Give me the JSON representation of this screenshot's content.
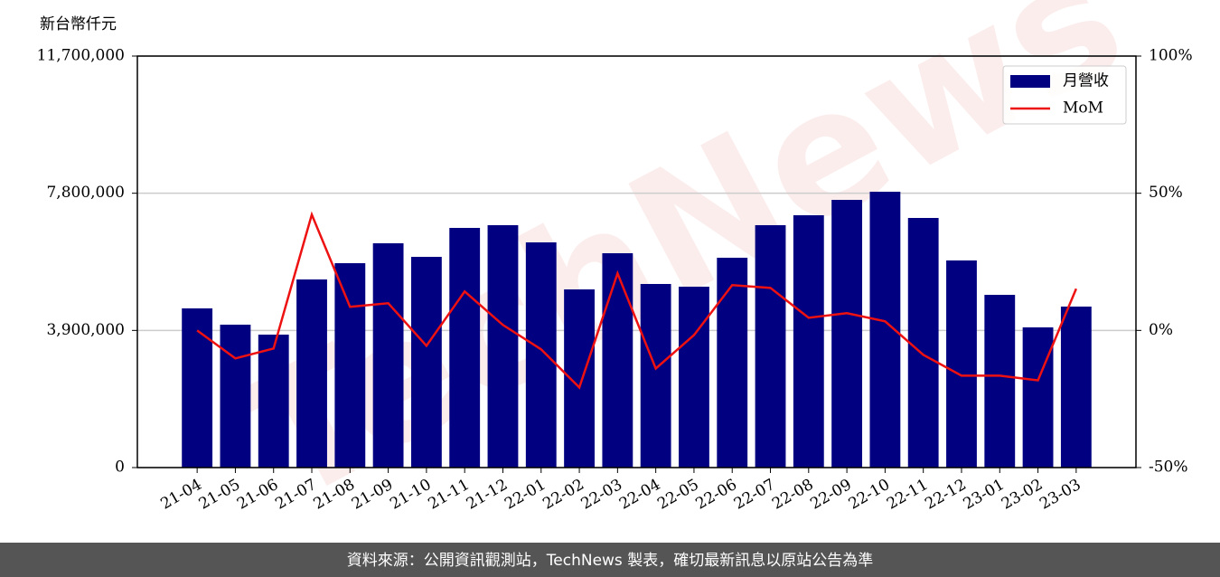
{
  "chart_data": {
    "type": "bar-line",
    "y_label": "新台幣仟元",
    "categories": [
      "21-04",
      "21-05",
      "21-06",
      "21-07",
      "21-08",
      "21-09",
      "21-10",
      "21-11",
      "21-12",
      "22-01",
      "22-02",
      "22-03",
      "22-04",
      "22-05",
      "22-06",
      "22-07",
      "22-08",
      "22-09",
      "22-10",
      "22-11",
      "22-12",
      "23-01",
      "23-02",
      "23-03"
    ],
    "series": [
      {
        "name": "月營收",
        "type": "bar",
        "color": "#000080",
        "values": [
          4526000,
          4063000,
          3780000,
          5349000,
          5811000,
          6377000,
          5991000,
          6814000,
          6892000,
          6403000,
          5066000,
          6094000,
          5220000,
          5143000,
          5966000,
          6892000,
          7174000,
          7611000,
          7843000,
          7097000,
          5889000,
          4911000,
          3986000,
          4577000
        ]
      },
      {
        "name": "MoM",
        "type": "line",
        "axis": "y2",
        "color": "#ee1111",
        "values": [
          0,
          -10.2,
          -6.6,
          42.2,
          8.6,
          9.9,
          -5.6,
          14.2,
          2.0,
          -6.9,
          -20.8,
          20.8,
          -13.9,
          -1.7,
          16.5,
          15.5,
          4.6,
          6.3,
          3.3,
          -8.9,
          -16.5,
          -16.5,
          -18.2,
          15.2
        ]
      }
    ],
    "ylim": [
      0,
      11700000
    ],
    "yticks": [
      0,
      {
        "value": 3900000,
        "label": "3,900,000"
      },
      {
        "value": 7800000,
        "label": "7,800,000"
      },
      {
        "value": 11700000,
        "label": "11,700,000"
      }
    ],
    "y2lim": [
      -50,
      100
    ],
    "y2ticks": [
      {
        "value": -50,
        "label": "-50%"
      },
      {
        "value": 0,
        "label": "0%"
      },
      {
        "value": 50,
        "label": "50%"
      },
      {
        "value": 100,
        "label": "100%"
      }
    ],
    "grid": true,
    "legend": "upper-right",
    "watermark": "TechNews",
    "footer": "資料來源：公開資訊觀測站，TechNews 製表，確切最新訊息以原站公告為準"
  }
}
